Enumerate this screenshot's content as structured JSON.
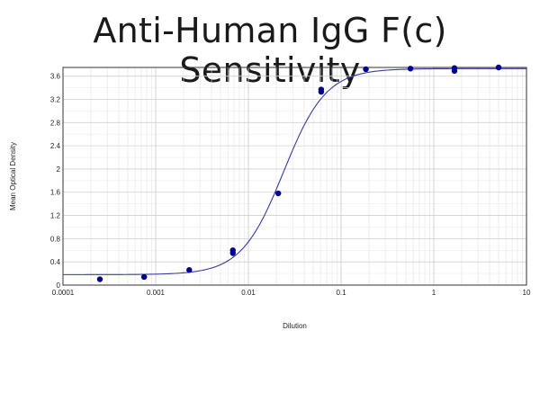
{
  "chart_data": {
    "type": "scatter",
    "title": "Anti-Human IgG F(c) Sensitivity",
    "xlabel": "Dilution",
    "ylabel": "Mean Optical Density",
    "x_scale": "log",
    "xlim": [
      0.0001,
      10
    ],
    "ylim": [
      0,
      3.75
    ],
    "x_ticks": [
      0.0001,
      0.001,
      0.01,
      0.1,
      1,
      10
    ],
    "x_tick_labels": [
      "0.0001",
      "0.001",
      "0.01",
      "0.1",
      "1",
      "10"
    ],
    "y_ticks": [
      0,
      0.4,
      0.8,
      1.2,
      1.6,
      2,
      2.4,
      2.8,
      3.2,
      3.6
    ],
    "y_tick_labels": [
      "0",
      "0.4",
      "0.8",
      "1.2",
      "1.6",
      "2",
      "2.4",
      "2.8",
      "3.2",
      "3.6"
    ],
    "grid": true,
    "marker_color": "#00008b",
    "curve_color": "#3a3aa0",
    "points": [
      {
        "x": 0.00025,
        "y": 0.1
      },
      {
        "x": 0.00075,
        "y": 0.14
      },
      {
        "x": 0.0023,
        "y": 0.26
      },
      {
        "x": 0.0068,
        "y": 0.55
      },
      {
        "x": 0.0068,
        "y": 0.6
      },
      {
        "x": 0.021,
        "y": 1.58
      },
      {
        "x": 0.061,
        "y": 3.33
      },
      {
        "x": 0.061,
        "y": 3.37
      },
      {
        "x": 0.185,
        "y": 3.72
      },
      {
        "x": 0.56,
        "y": 3.73
      },
      {
        "x": 1.67,
        "y": 3.69
      },
      {
        "x": 1.67,
        "y": 3.74
      },
      {
        "x": 5.0,
        "y": 3.75
      }
    ],
    "fit_curve": {
      "model": "4PL",
      "bottom": 0.18,
      "top": 3.73,
      "ec50": 0.024,
      "hill": 1.9
    }
  }
}
